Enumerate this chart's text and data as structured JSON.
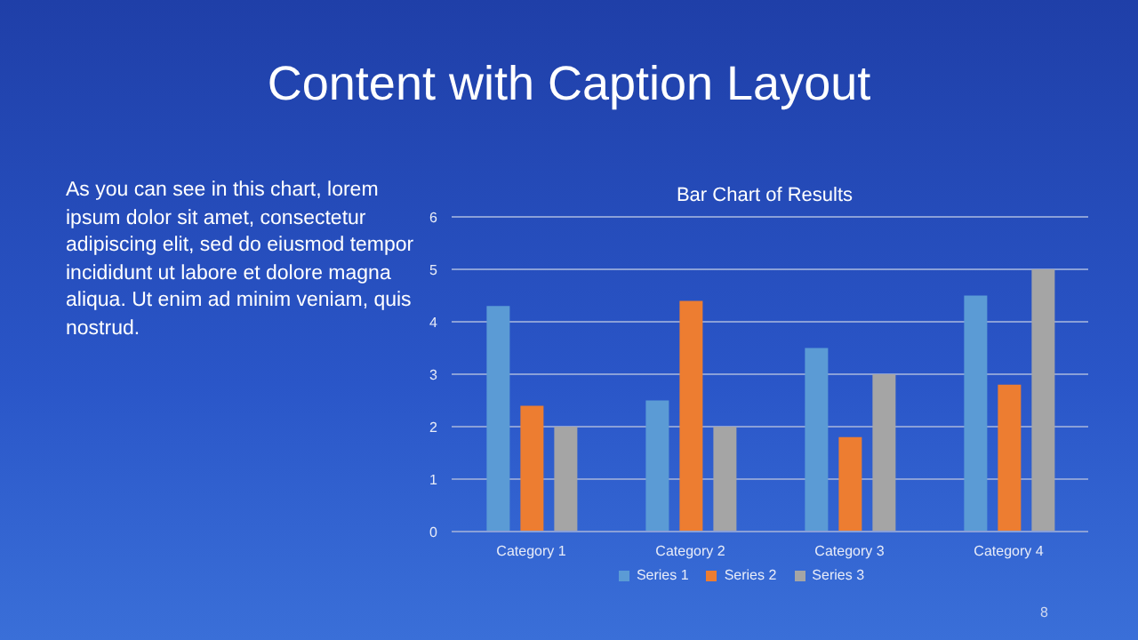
{
  "chart_data": {
    "type": "bar",
    "title": "Bar Chart of Results",
    "annotations": [
      "Content with Caption Layout",
      "As you can see in this chart, lorem ipsum dolor sit amet, consectetur adipiscing elit, sed do eiusmod tempor incididunt ut labore et dolore magna aliqua. Ut enim ad minim veniam, quis nostrud.",
      "8"
    ],
    "categories": [
      "Category 1",
      "Category 2",
      "Category 3",
      "Category 4"
    ],
    "series": [
      {
        "name": "Series 1",
        "color": "#5b9bd5",
        "values": [
          4.3,
          2.5,
          3.5,
          4.5
        ]
      },
      {
        "name": "Series 2",
        "color": "#ed7d31",
        "values": [
          2.4,
          4.4,
          1.8,
          2.8
        ]
      },
      {
        "name": "Series 3",
        "color": "#a5a5a5",
        "values": [
          2,
          2,
          3,
          5
        ]
      }
    ],
    "ylim": [
      0,
      6
    ],
    "yticks": [
      0,
      1,
      2,
      3,
      4,
      5,
      6
    ],
    "grid": "y",
    "legend": "bottom"
  }
}
